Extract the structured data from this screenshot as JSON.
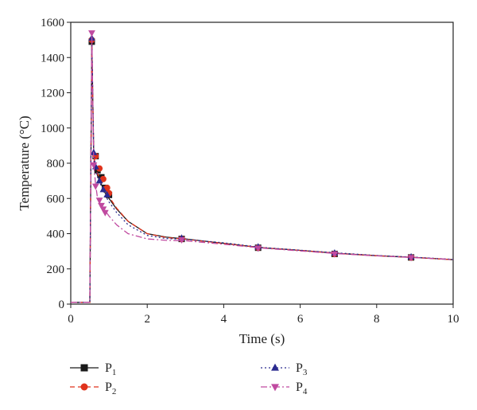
{
  "chart_data": {
    "type": "line",
    "xlabel": "Time (s)",
    "ylabel": "Temperature (°C)",
    "xlim": [
      0,
      10
    ],
    "ylim": [
      0,
      1600
    ],
    "xticks": [
      0,
      2,
      4,
      6,
      8,
      10
    ],
    "yticks": [
      0,
      200,
      400,
      600,
      800,
      1000,
      1200,
      1400,
      1600
    ],
    "grid": false,
    "legend_position": "bottom",
    "series": [
      {
        "name": "P1",
        "name_main": "P",
        "name_sub": "1",
        "color": "#1a1a1a",
        "dash": "solid",
        "marker": "square",
        "x": [
          0,
          0.5,
          0.55,
          0.6,
          0.65,
          0.7,
          0.8,
          0.9,
          1.0,
          1.2,
          1.5,
          2.0,
          2.5,
          3.0,
          4.0,
          5.0,
          6.0,
          7.0,
          8.0,
          9.0,
          10.0
        ],
        "y": [
          10,
          10,
          1490,
          850,
          760,
          730,
          680,
          630,
          600,
          540,
          470,
          400,
          380,
          370,
          345,
          320,
          305,
          288,
          275,
          265,
          252
        ],
        "marker_x": [
          0.55,
          0.65,
          0.7,
          0.8,
          0.9,
          1.0,
          2.9,
          4.9,
          6.9,
          8.9
        ],
        "marker_y": [
          1490,
          840,
          760,
          720,
          660,
          620,
          370,
          320,
          285,
          265
        ]
      },
      {
        "name": "P2",
        "name_main": "P",
        "name_sub": "2",
        "color": "#e0331c",
        "dash": "dashed",
        "marker": "circle",
        "x": [
          0,
          0.5,
          0.55,
          0.6,
          0.65,
          0.7,
          0.8,
          0.9,
          1.0,
          1.2,
          1.5,
          2.0,
          2.5,
          3.0,
          4.0,
          5.0,
          6.0,
          7.0,
          8.0,
          9.0,
          10.0
        ],
        "y": [
          10,
          10,
          1500,
          845,
          770,
          740,
          700,
          650,
          610,
          545,
          470,
          400,
          378,
          368,
          345,
          320,
          305,
          288,
          275,
          265,
          252
        ],
        "marker_x": [
          0.55,
          0.65,
          0.75,
          0.85,
          0.95,
          1.0,
          2.9,
          4.9,
          6.9,
          8.9
        ],
        "marker_y": [
          1500,
          840,
          770,
          710,
          660,
          630,
          370,
          320,
          285,
          265
        ]
      },
      {
        "name": "P3",
        "name_main": "P",
        "name_sub": "3",
        "color": "#2b2b8f",
        "dash": "dotted",
        "marker": "triangle-up",
        "x": [
          0,
          0.5,
          0.55,
          0.6,
          0.65,
          0.7,
          0.8,
          0.9,
          1.0,
          1.2,
          1.5,
          2.0,
          2.5,
          3.0,
          4.0,
          5.0,
          6.0,
          7.0,
          8.0,
          9.0,
          10.0
        ],
        "y": [
          10,
          10,
          1510,
          860,
          780,
          720,
          670,
          620,
          580,
          520,
          450,
          390,
          372,
          368,
          348,
          322,
          306,
          290,
          276,
          266,
          254
        ],
        "marker_x": [
          0.55,
          0.6,
          0.65,
          0.75,
          0.85,
          0.95,
          2.9,
          4.9,
          6.9,
          8.9
        ],
        "marker_y": [
          1510,
          860,
          780,
          700,
          650,
          620,
          375,
          325,
          290,
          268
        ]
      },
      {
        "name": "P4",
        "name_main": "P",
        "name_sub": "4",
        "color": "#c04aa0",
        "dash": "dashdot",
        "marker": "triangle-down",
        "x": [
          0,
          0.5,
          0.55,
          0.6,
          0.65,
          0.7,
          0.8,
          0.9,
          1.0,
          1.2,
          1.5,
          2.0,
          2.5,
          3.0,
          4.0,
          5.0,
          6.0,
          7.0,
          8.0,
          9.0,
          10.0
        ],
        "y": [
          10,
          10,
          1540,
          790,
          680,
          600,
          560,
          530,
          500,
          450,
          400,
          370,
          362,
          360,
          340,
          318,
          302,
          286,
          274,
          264,
          253
        ],
        "marker_x": [
          0.55,
          0.6,
          0.65,
          0.75,
          0.8,
          0.85,
          0.9,
          2.9,
          4.9,
          6.9,
          8.9
        ],
        "marker_y": [
          1540,
          790,
          670,
          590,
          560,
          540,
          520,
          365,
          318,
          285,
          264
        ]
      }
    ]
  }
}
